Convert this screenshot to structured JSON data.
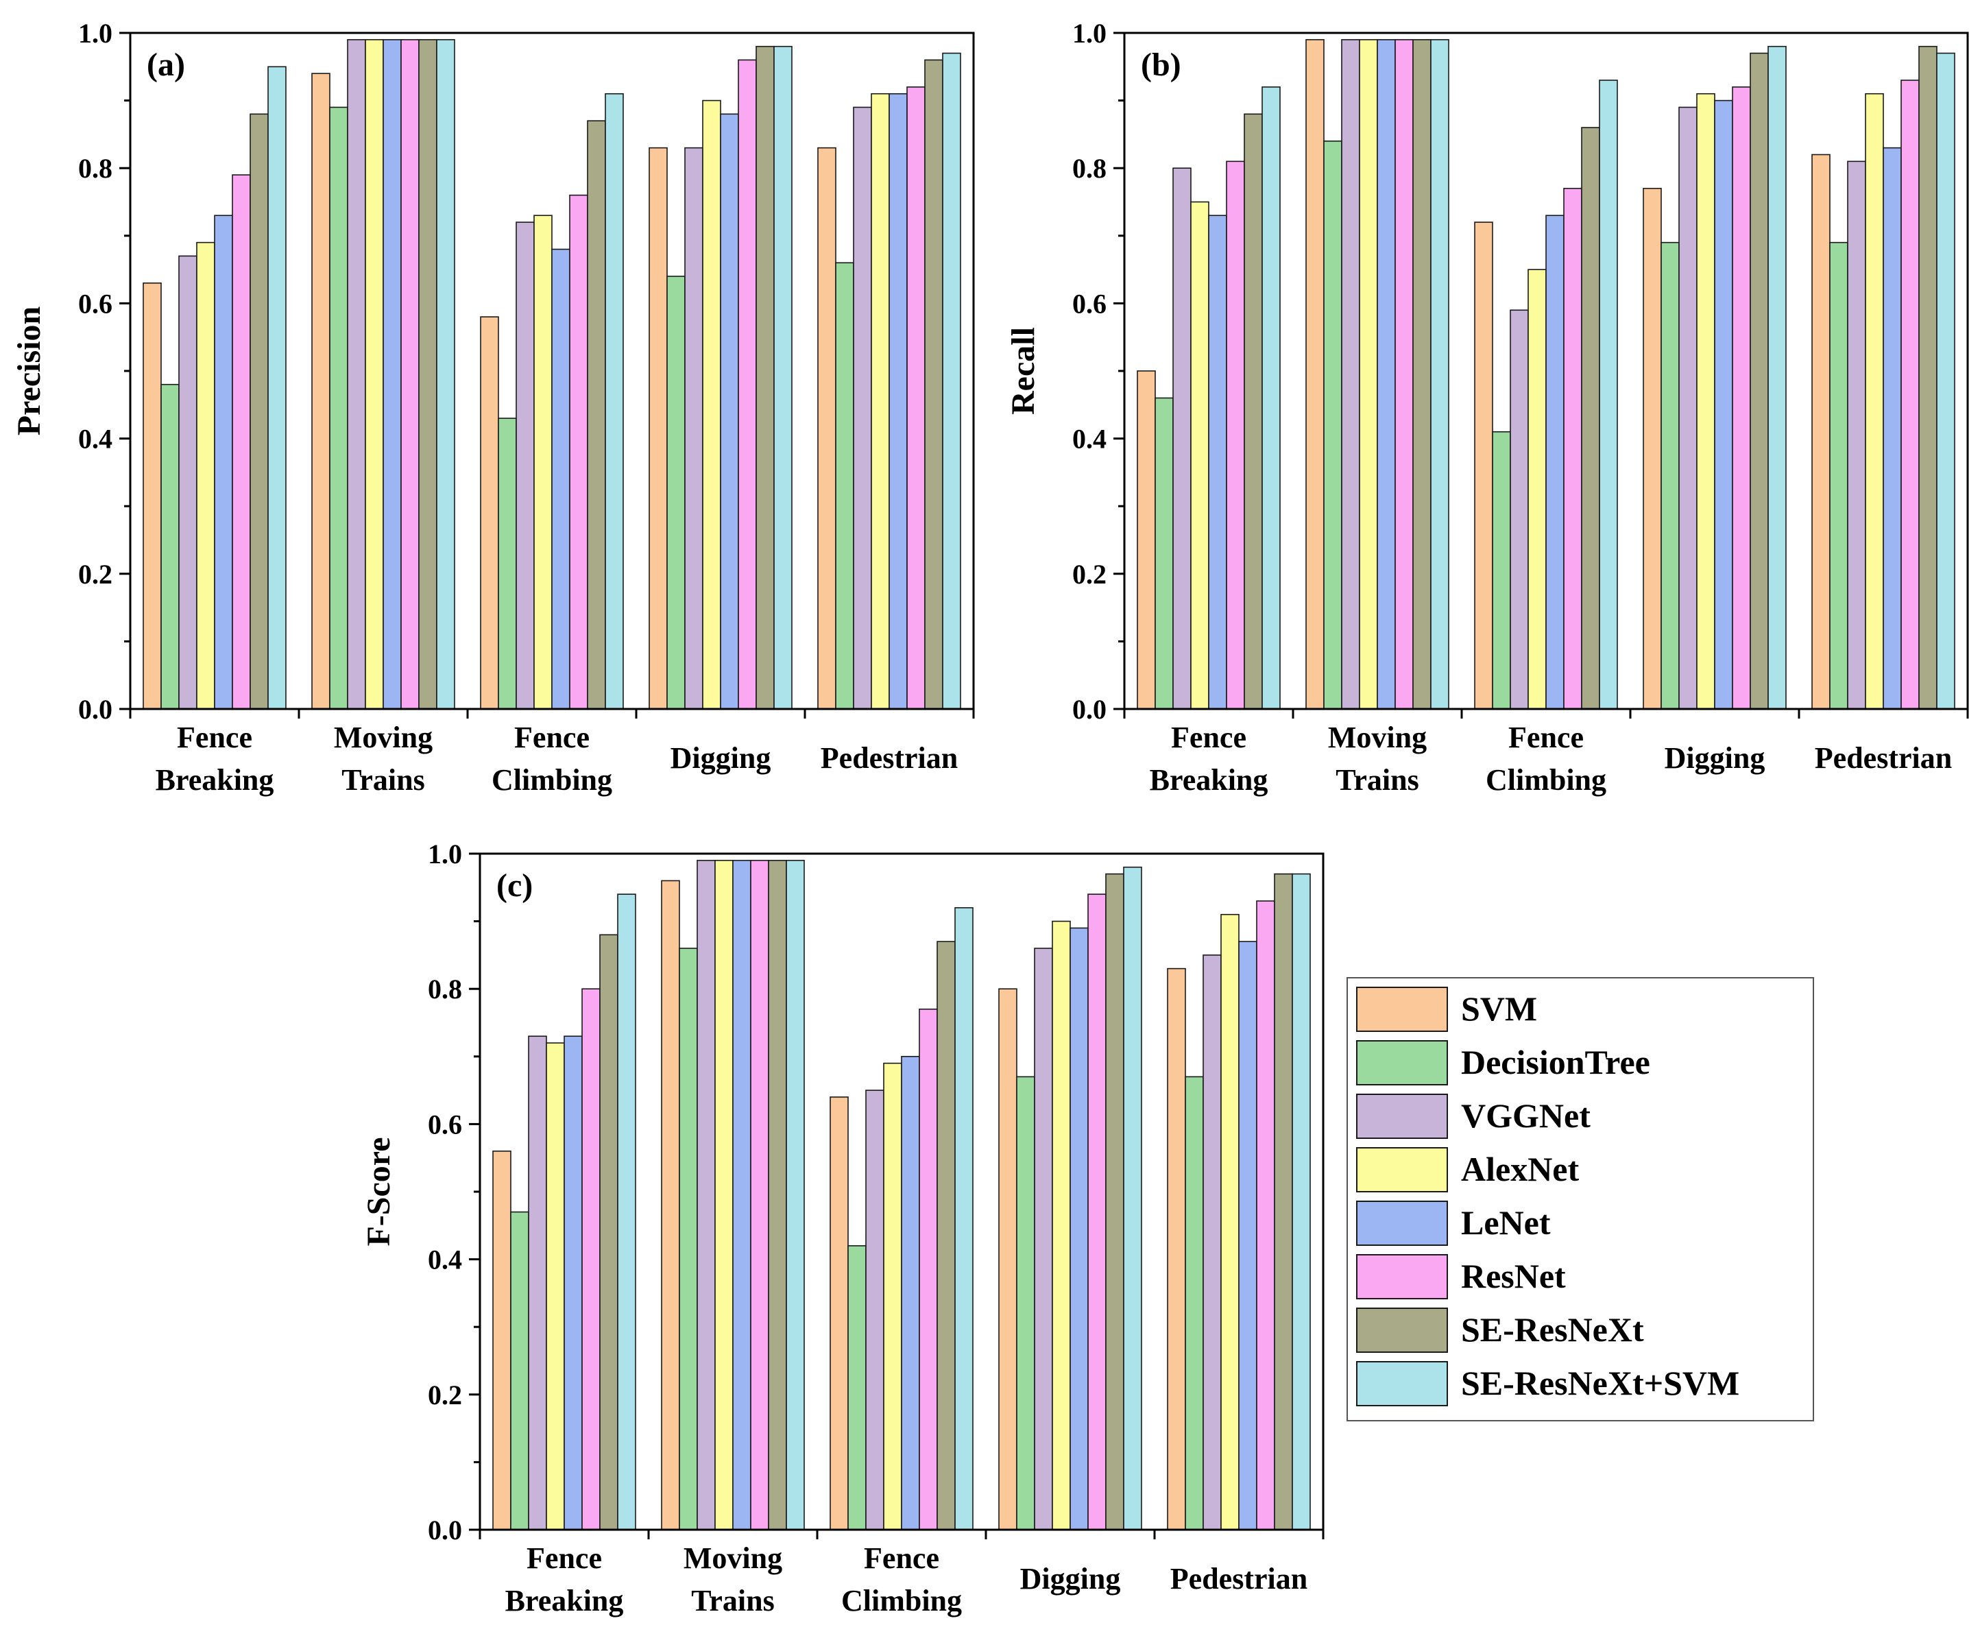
{
  "colors": {
    "SVM": "#FBC89A",
    "DecisionTree": "#9BDA9F",
    "VGGNet": "#C8B4D9",
    "AlexNet": "#FCFC9C",
    "LeNet": "#9BB6F2",
    "ResNet": "#FBA8F3",
    "SE-ResNeXt": "#A9AA88",
    "SE-ResNeXt+SVM": "#ACE3EA"
  },
  "legend": {
    "items": [
      "SVM",
      "DecisionTree",
      "VGGNet",
      "AlexNet",
      "LeNet",
      "ResNet",
      "SE-ResNeXt",
      "SE-ResNeXt+SVM"
    ]
  },
  "chart_data": [
    {
      "type": "bar",
      "panel": "(a)",
      "ylabel": "Precision",
      "xlabel": "",
      "ylim": [
        0.0,
        1.0
      ],
      "yticks": [
        "0.0",
        "0.2",
        "0.4",
        "0.6",
        "0.8",
        "1.0"
      ],
      "categories": [
        [
          "Fence",
          "Breaking"
        ],
        [
          "Moving",
          "Trains"
        ],
        [
          "Fence",
          "Climbing"
        ],
        [
          "Digging"
        ],
        [
          "Pedestrian"
        ]
      ],
      "series": [
        {
          "name": "SVM",
          "values": [
            0.63,
            0.94,
            0.58,
            0.83,
            0.83
          ]
        },
        {
          "name": "DecisionTree",
          "values": [
            0.48,
            0.89,
            0.43,
            0.64,
            0.66
          ]
        },
        {
          "name": "VGGNet",
          "values": [
            0.67,
            0.99,
            0.72,
            0.83,
            0.89
          ]
        },
        {
          "name": "AlexNet",
          "values": [
            0.69,
            0.99,
            0.73,
            0.9,
            0.91
          ]
        },
        {
          "name": "LeNet",
          "values": [
            0.73,
            0.99,
            0.68,
            0.88,
            0.91
          ]
        },
        {
          "name": "ResNet",
          "values": [
            0.79,
            0.99,
            0.76,
            0.96,
            0.92
          ]
        },
        {
          "name": "SE-ResNeXt",
          "values": [
            0.88,
            0.99,
            0.87,
            0.98,
            0.96
          ]
        },
        {
          "name": "SE-ResNeXt+SVM",
          "values": [
            0.95,
            0.99,
            0.91,
            0.98,
            0.97
          ]
        }
      ]
    },
    {
      "type": "bar",
      "panel": "(b)",
      "ylabel": "Recall",
      "xlabel": "",
      "ylim": [
        0.0,
        1.0
      ],
      "yticks": [
        "0.0",
        "0.2",
        "0.4",
        "0.6",
        "0.8",
        "1.0"
      ],
      "categories": [
        [
          "Fence",
          "Breaking"
        ],
        [
          "Moving",
          "Trains"
        ],
        [
          "Fence",
          "Climbing"
        ],
        [
          "Digging"
        ],
        [
          "Pedestrian"
        ]
      ],
      "series": [
        {
          "name": "SVM",
          "values": [
            0.5,
            0.99,
            0.72,
            0.77,
            0.82
          ]
        },
        {
          "name": "DecisionTree",
          "values": [
            0.46,
            0.84,
            0.41,
            0.69,
            0.69
          ]
        },
        {
          "name": "VGGNet",
          "values": [
            0.8,
            0.99,
            0.59,
            0.89,
            0.81
          ]
        },
        {
          "name": "AlexNet",
          "values": [
            0.75,
            0.99,
            0.65,
            0.91,
            0.91
          ]
        },
        {
          "name": "LeNet",
          "values": [
            0.73,
            0.99,
            0.73,
            0.9,
            0.83
          ]
        },
        {
          "name": "ResNet",
          "values": [
            0.81,
            0.99,
            0.77,
            0.92,
            0.93
          ]
        },
        {
          "name": "SE-ResNeXt",
          "values": [
            0.88,
            0.99,
            0.86,
            0.97,
            0.98
          ]
        },
        {
          "name": "SE-ResNeXt+SVM",
          "values": [
            0.92,
            0.99,
            0.93,
            0.98,
            0.97
          ]
        }
      ]
    },
    {
      "type": "bar",
      "panel": "(c)",
      "ylabel": "F-Score",
      "xlabel": "",
      "ylim": [
        0.0,
        1.0
      ],
      "yticks": [
        "0.0",
        "0.2",
        "0.4",
        "0.6",
        "0.8",
        "1.0"
      ],
      "categories": [
        [
          "Fence",
          "Breaking"
        ],
        [
          "Moving",
          "Trains"
        ],
        [
          "Fence",
          "Climbing"
        ],
        [
          "Digging"
        ],
        [
          "Pedestrian"
        ]
      ],
      "series": [
        {
          "name": "SVM",
          "values": [
            0.56,
            0.96,
            0.64,
            0.8,
            0.83
          ]
        },
        {
          "name": "DecisionTree",
          "values": [
            0.47,
            0.86,
            0.42,
            0.67,
            0.67
          ]
        },
        {
          "name": "VGGNet",
          "values": [
            0.73,
            0.99,
            0.65,
            0.86,
            0.85
          ]
        },
        {
          "name": "AlexNet",
          "values": [
            0.72,
            0.99,
            0.69,
            0.9,
            0.91
          ]
        },
        {
          "name": "LeNet",
          "values": [
            0.73,
            0.99,
            0.7,
            0.89,
            0.87
          ]
        },
        {
          "name": "ResNet",
          "values": [
            0.8,
            0.99,
            0.77,
            0.94,
            0.93
          ]
        },
        {
          "name": "SE-ResNeXt",
          "values": [
            0.88,
            0.99,
            0.87,
            0.97,
            0.97
          ]
        },
        {
          "name": "SE-ResNeXt+SVM",
          "values": [
            0.94,
            0.99,
            0.92,
            0.98,
            0.97
          ]
        }
      ]
    }
  ]
}
